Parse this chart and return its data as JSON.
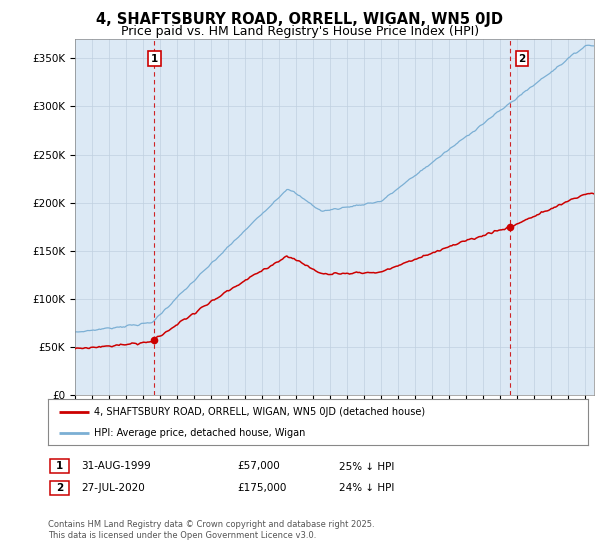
{
  "title": "4, SHAFTSBURY ROAD, ORRELL, WIGAN, WN5 0JD",
  "subtitle": "Price paid vs. HM Land Registry's House Price Index (HPI)",
  "ylabel_ticks": [
    "£0",
    "£50K",
    "£100K",
    "£150K",
    "£200K",
    "£250K",
    "£300K",
    "£350K"
  ],
  "ytick_vals": [
    0,
    50000,
    100000,
    150000,
    200000,
    250000,
    300000,
    350000
  ],
  "ylim": [
    0,
    370000
  ],
  "xlim_start": 1995.0,
  "xlim_end": 2025.5,
  "red_color": "#cc0000",
  "blue_color": "#7bafd4",
  "plot_bg_color": "#dce9f5",
  "marker1_date": 1999.667,
  "marker1_price": 57000,
  "marker1_label": "1",
  "marker2_date": 2020.567,
  "marker2_price": 175000,
  "marker2_label": "2",
  "legend_line1": "4, SHAFTSBURY ROAD, ORRELL, WIGAN, WN5 0JD (detached house)",
  "legend_line2": "HPI: Average price, detached house, Wigan",
  "table_row1": [
    "1",
    "31-AUG-1999",
    "£57,000",
    "25% ↓ HPI"
  ],
  "table_row2": [
    "2",
    "27-JUL-2020",
    "£175,000",
    "24% ↓ HPI"
  ],
  "footer": "Contains HM Land Registry data © Crown copyright and database right 2025.\nThis data is licensed under the Open Government Licence v3.0.",
  "background_color": "#ffffff",
  "grid_color": "#c0d0e0",
  "title_fontsize": 10.5,
  "subtitle_fontsize": 9
}
